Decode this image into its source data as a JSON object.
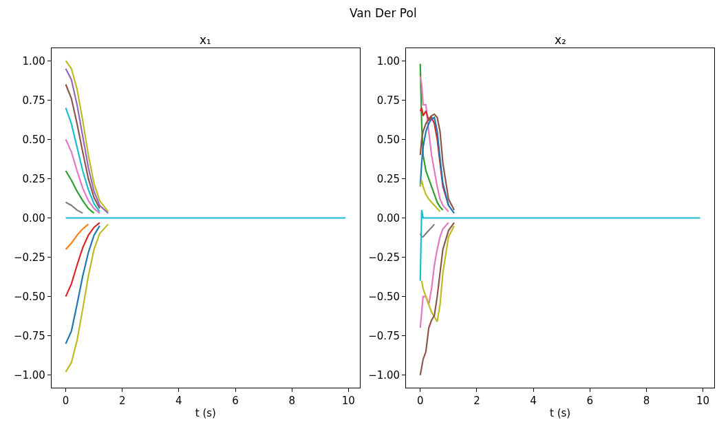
{
  "chart_data": [
    {
      "type": "line",
      "title": "x₁",
      "xlabel": "t (s)",
      "annotations": [
        "Van Der Pol"
      ],
      "xlim": [
        -0.5,
        10.4
      ],
      "xticks": [
        0,
        2,
        4,
        6,
        8,
        10
      ],
      "ylim": [
        -1.08,
        1.08
      ],
      "yticks": [
        {
          "value": -1.0,
          "label": "−1.00"
        },
        {
          "value": -0.75,
          "label": "−0.75"
        },
        {
          "value": -0.5,
          "label": "−0.50"
        },
        {
          "value": -0.25,
          "label": "−0.25"
        },
        {
          "value": 0.0,
          "label": "0.00"
        },
        {
          "value": 0.25,
          "label": "0.25"
        },
        {
          "value": 0.5,
          "label": "0.50"
        },
        {
          "value": 0.75,
          "label": "0.75"
        },
        {
          "value": 1.0,
          "label": "1.00"
        }
      ],
      "marker": "none",
      "line_style": "solid",
      "x": [
        0,
        0.2,
        0.4,
        0.6,
        0.8,
        1,
        1.2,
        1.5,
        2,
        3,
        9.9
      ],
      "series": [
        {
          "color": "#bcbd22",
          "values": [
            1.0,
            0.95,
            0.82,
            0.62,
            0.4,
            0.22,
            0.11,
            0.04,
            null,
            null,
            null
          ]
        },
        {
          "color": "#9467bd",
          "values": [
            0.95,
            0.88,
            0.72,
            0.52,
            0.32,
            0.17,
            0.08,
            0.03,
            null,
            null,
            null
          ]
        },
        {
          "color": "#8c564b",
          "values": [
            0.85,
            0.76,
            0.6,
            0.42,
            0.25,
            0.13,
            0.06,
            null,
            null,
            null,
            null
          ]
        },
        {
          "color": "#17becf",
          "values": [
            0.7,
            0.6,
            0.45,
            0.3,
            0.18,
            0.09,
            0.04,
            null,
            null,
            null,
            null
          ]
        },
        {
          "color": "#e377c2",
          "values": [
            0.5,
            0.42,
            0.3,
            0.19,
            0.11,
            0.06,
            0.03,
            null,
            null,
            null,
            null
          ]
        },
        {
          "color": "#2ca02c",
          "values": [
            0.3,
            0.24,
            0.17,
            0.11,
            0.06,
            0.03,
            null,
            null,
            null,
            null,
            null
          ]
        },
        {
          "color": "#7f7f7f",
          "values": [
            0.1,
            0.08,
            0.05,
            0.03,
            null,
            null,
            null,
            null,
            null,
            null,
            null
          ]
        },
        {
          "color": "#ff7f0e",
          "values": [
            -0.2,
            -0.16,
            -0.11,
            -0.07,
            -0.04,
            null,
            null,
            null,
            null,
            null,
            null
          ]
        },
        {
          "color": "#d62728",
          "values": [
            -0.5,
            -0.42,
            -0.3,
            -0.19,
            -0.11,
            -0.06,
            -0.03,
            null,
            null,
            null,
            null
          ]
        },
        {
          "color": "#1f77b4",
          "values": [
            -0.8,
            -0.72,
            -0.55,
            -0.37,
            -0.22,
            -0.11,
            -0.05,
            null,
            null,
            null,
            null
          ]
        },
        {
          "color": "#bcbd22",
          "values": [
            -0.98,
            -0.92,
            -0.78,
            -0.58,
            -0.37,
            -0.2,
            -0.1,
            -0.04,
            null,
            null,
            null
          ]
        },
        {
          "color": "#17becf",
          "values": [
            0,
            0,
            0,
            0,
            0,
            0,
            0,
            0,
            0,
            0,
            0
          ]
        }
      ]
    },
    {
      "type": "line",
      "title": "x₂",
      "xlabel": "t (s)",
      "xlim": [
        -0.5,
        10.4
      ],
      "xticks": [
        0,
        2,
        4,
        6,
        8,
        10
      ],
      "ylim": [
        -1.08,
        1.08
      ],
      "yticks": [
        {
          "value": -1.0,
          "label": "−1.00"
        },
        {
          "value": -0.75,
          "label": "−0.75"
        },
        {
          "value": -0.5,
          "label": "−0.50"
        },
        {
          "value": -0.25,
          "label": "−0.25"
        },
        {
          "value": 0.0,
          "label": "0.00"
        },
        {
          "value": 0.25,
          "label": "0.25"
        },
        {
          "value": 0.5,
          "label": "0.50"
        },
        {
          "value": 0.75,
          "label": "0.75"
        },
        {
          "value": 1.0,
          "label": "1.00"
        }
      ],
      "marker": "none",
      "line_style": "solid",
      "x": [
        0,
        0.05,
        0.1,
        0.2,
        0.3,
        0.4,
        0.5,
        0.6,
        0.7,
        0.8,
        1,
        1.2,
        1.5,
        2,
        3,
        9.9
      ],
      "series": [
        {
          "color": "#2ca02c",
          "values": [
            0.98,
            0.6,
            0.4,
            0.3,
            0.25,
            0.2,
            0.15,
            0.1,
            0.07,
            0.05,
            null,
            null,
            null,
            null,
            null,
            null
          ]
        },
        {
          "color": "#e377c2",
          "values": [
            0.9,
            0.85,
            0.72,
            0.72,
            0.55,
            0.4,
            0.3,
            0.2,
            0.12,
            0.08,
            0.04,
            null,
            null,
            null,
            null,
            null
          ]
        },
        {
          "color": "#d62728",
          "values": [
            0.68,
            0.7,
            0.65,
            0.68,
            0.62,
            0.64,
            0.6,
            0.5,
            0.35,
            0.2,
            0.08,
            null,
            null,
            null,
            null,
            null
          ]
        },
        {
          "color": "#8c564b",
          "values": [
            0.4,
            0.5,
            0.55,
            0.6,
            0.63,
            0.65,
            0.66,
            0.64,
            0.55,
            0.35,
            0.12,
            0.05,
            null,
            null,
            null,
            null
          ]
        },
        {
          "color": "#1f77b4",
          "values": [
            0.2,
            0.35,
            0.45,
            0.55,
            0.6,
            0.63,
            0.64,
            0.55,
            0.38,
            0.22,
            0.08,
            0.03,
            null,
            null,
            null,
            null
          ]
        },
        {
          "color": "#bcbd22",
          "values": [
            0.2,
            0.24,
            0.2,
            0.15,
            0.12,
            0.1,
            0.08,
            0.06,
            0.04,
            null,
            null,
            null,
            null,
            null,
            null,
            null
          ]
        },
        {
          "color": "#7f7f7f",
          "values": [
            -0.1,
            -0.12,
            -0.12,
            -0.1,
            -0.08,
            -0.06,
            -0.04,
            null,
            null,
            null,
            null,
            null,
            null,
            null,
            null,
            null
          ]
        },
        {
          "color": "#e377c2",
          "values": [
            -0.7,
            -0.6,
            -0.5,
            -0.5,
            -0.55,
            -0.45,
            -0.3,
            -0.2,
            -0.12,
            -0.07,
            -0.03,
            null,
            null,
            null,
            null,
            null
          ]
        },
        {
          "color": "#bcbd22",
          "values": [
            null,
            -0.4,
            -0.45,
            -0.5,
            -0.55,
            -0.6,
            -0.63,
            -0.66,
            -0.55,
            -0.35,
            -0.12,
            -0.05,
            null,
            null,
            null,
            null
          ]
        },
        {
          "color": "#8c564b",
          "values": [
            -1.0,
            -0.95,
            -0.9,
            -0.85,
            -0.7,
            -0.65,
            -0.62,
            -0.5,
            -0.35,
            -0.2,
            -0.08,
            -0.03,
            null,
            null,
            null,
            null
          ]
        },
        {
          "color": "#17becf",
          "values": [
            -0.4,
            0.05,
            0,
            0,
            0,
            0,
            0,
            0,
            0,
            0,
            0,
            0,
            0,
            0,
            0,
            0
          ]
        }
      ]
    }
  ]
}
